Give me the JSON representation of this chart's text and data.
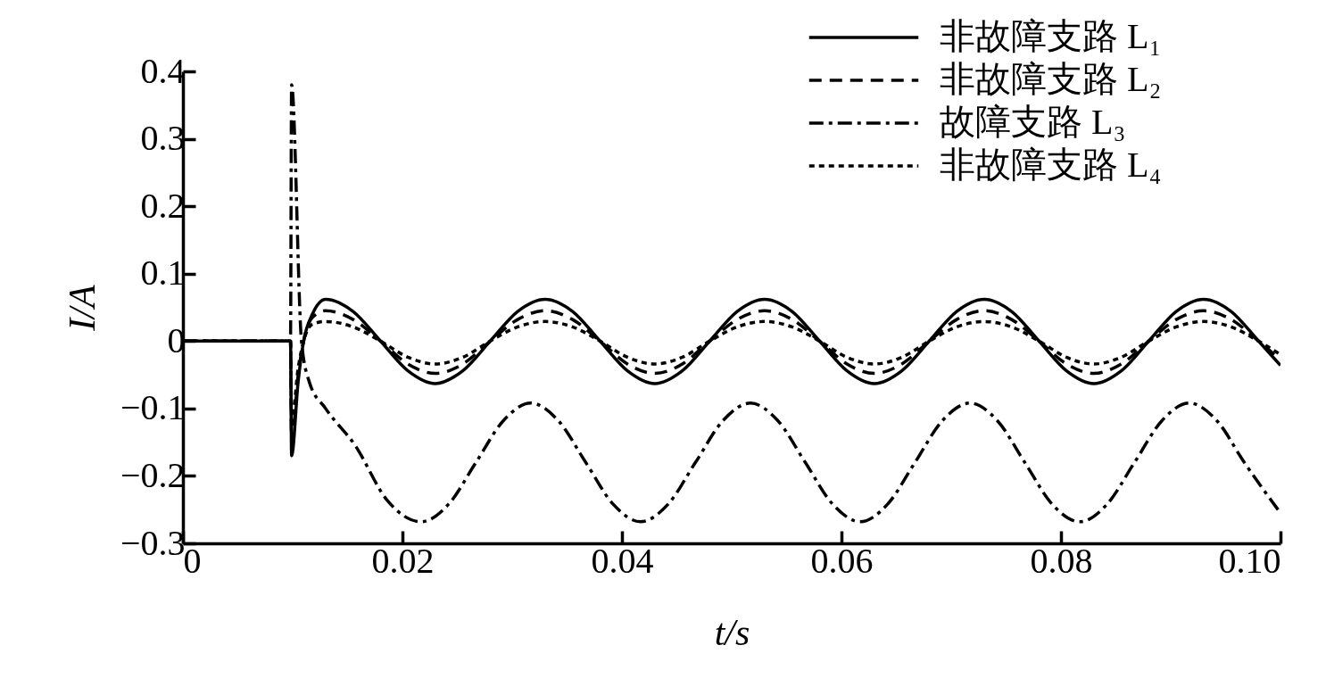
{
  "chart_data": {
    "type": "line",
    "xlabel": "t/s",
    "ylabel": "I/A",
    "xlim": [
      0,
      0.1
    ],
    "ylim": [
      -0.3,
      0.4
    ],
    "xticks": [
      {
        "value": 0,
        "label": "0"
      },
      0.02,
      0.04,
      0.06,
      0.08,
      {
        "value": 0.1,
        "label": "0.10"
      }
    ],
    "yticks": [
      {
        "value": -0.3,
        "label": "−0.3"
      },
      {
        "value": -0.2,
        "label": "−0.2"
      },
      {
        "value": -0.1,
        "label": "−0.1"
      },
      {
        "value": 0,
        "label": "0"
      },
      0.1,
      0.2,
      0.3,
      0.4
    ],
    "grid": false,
    "legend": "top right",
    "marker": "none",
    "series": [
      {
        "name": "非故障支路 L₁",
        "color": "#000000",
        "line_style": "solid",
        "x": [
          0,
          0.0098,
          0.0099,
          0.0105,
          0.011,
          0.0118,
          0.013,
          0.0155,
          0.018,
          0.0205,
          0.023,
          0.0255,
          0.028,
          0.0305,
          0.033,
          0.0355,
          0.038,
          0.0405,
          0.043,
          0.0455,
          0.048,
          0.0505,
          0.053,
          0.0555,
          0.058,
          0.0605,
          0.063,
          0.0655,
          0.068,
          0.0705,
          0.073,
          0.0755,
          0.078,
          0.0805,
          0.083,
          0.0855,
          0.088,
          0.0905,
          0.093,
          0.0955,
          0.098,
          0.1
        ],
        "values": [
          0,
          0,
          -0.17,
          -0.06,
          0,
          0.04,
          0.062,
          0.044,
          0,
          -0.044,
          -0.063,
          -0.044,
          0,
          0.044,
          0.062,
          0.044,
          0,
          -0.044,
          -0.063,
          -0.044,
          0,
          0.044,
          0.062,
          0.044,
          0,
          -0.044,
          -0.063,
          -0.044,
          0,
          0.044,
          0.062,
          0.044,
          0,
          -0.044,
          -0.063,
          -0.044,
          0,
          0.044,
          0.062,
          0.044,
          0,
          -0.036
        ]
      },
      {
        "name": "非故障支路 L₂",
        "color": "#000000",
        "line_style": "dashed",
        "x": [
          0,
          0.0098,
          0.0099,
          0.0105,
          0.011,
          0.0118,
          0.013,
          0.0155,
          0.018,
          0.0205,
          0.023,
          0.0255,
          0.028,
          0.0305,
          0.033,
          0.0355,
          0.038,
          0.0405,
          0.043,
          0.0455,
          0.048,
          0.0505,
          0.053,
          0.0555,
          0.058,
          0.0605,
          0.063,
          0.0655,
          0.068,
          0.0705,
          0.073,
          0.0755,
          0.078,
          0.0805,
          0.083,
          0.0855,
          0.088,
          0.0905,
          0.093,
          0.0955,
          0.098,
          0.1
        ],
        "values": [
          0,
          0,
          -0.15,
          -0.05,
          0,
          0.035,
          0.045,
          0.032,
          0,
          -0.034,
          -0.048,
          -0.034,
          0,
          0.032,
          0.045,
          0.032,
          0,
          -0.034,
          -0.048,
          -0.034,
          0,
          0.032,
          0.045,
          0.032,
          0,
          -0.034,
          -0.048,
          -0.034,
          0,
          0.032,
          0.045,
          0.032,
          0,
          -0.034,
          -0.048,
          -0.034,
          0,
          0.032,
          0.045,
          0.032,
          0,
          -0.028
        ]
      },
      {
        "name": "故障支路 L₃",
        "color": "#000000",
        "line_style": "dashdot",
        "x": [
          0,
          0.0098,
          0.0099,
          0.0108,
          0.0115,
          0.013,
          0.0157,
          0.0186,
          0.0217,
          0.0242,
          0.0267,
          0.0292,
          0.0317,
          0.0342,
          0.0367,
          0.0392,
          0.0417,
          0.0442,
          0.0467,
          0.0492,
          0.0517,
          0.0542,
          0.0567,
          0.0592,
          0.0617,
          0.0642,
          0.0667,
          0.0692,
          0.0717,
          0.0742,
          0.0767,
          0.0792,
          0.0817,
          0.0842,
          0.0867,
          0.0892,
          0.0917,
          0.0942,
          0.0967,
          0.1
        ],
        "values": [
          0,
          0,
          0.38,
          0,
          -0.06,
          -0.1,
          -0.155,
          -0.236,
          -0.268,
          -0.242,
          -0.18,
          -0.118,
          -0.092,
          -0.118,
          -0.18,
          -0.242,
          -0.268,
          -0.242,
          -0.18,
          -0.118,
          -0.092,
          -0.118,
          -0.18,
          -0.242,
          -0.268,
          -0.242,
          -0.18,
          -0.118,
          -0.092,
          -0.118,
          -0.18,
          -0.242,
          -0.268,
          -0.242,
          -0.18,
          -0.118,
          -0.092,
          -0.118,
          -0.18,
          -0.255
        ]
      },
      {
        "name": "非故障支路 L₄",
        "color": "#000000",
        "line_style": "dotted",
        "x": [
          0,
          0.0098,
          0.0099,
          0.0105,
          0.011,
          0.0118,
          0.013,
          0.0155,
          0.018,
          0.0205,
          0.023,
          0.0255,
          0.028,
          0.0305,
          0.033,
          0.0355,
          0.038,
          0.0405,
          0.043,
          0.0455,
          0.048,
          0.0505,
          0.053,
          0.0555,
          0.058,
          0.0605,
          0.063,
          0.0655,
          0.068,
          0.0705,
          0.073,
          0.0755,
          0.078,
          0.0805,
          0.083,
          0.0855,
          0.088,
          0.0905,
          0.093,
          0.0955,
          0.098,
          0.1
        ],
        "values": [
          0,
          0,
          -0.12,
          -0.04,
          0,
          0.025,
          0.029,
          0.021,
          0,
          -0.024,
          -0.034,
          -0.024,
          0,
          0.021,
          0.029,
          0.021,
          0,
          -0.024,
          -0.034,
          -0.024,
          0,
          0.021,
          0.029,
          0.021,
          0,
          -0.024,
          -0.034,
          -0.024,
          0,
          0.021,
          0.029,
          0.021,
          0,
          -0.024,
          -0.034,
          -0.024,
          0,
          0.021,
          0.029,
          0.021,
          0,
          -0.02
        ]
      }
    ]
  }
}
